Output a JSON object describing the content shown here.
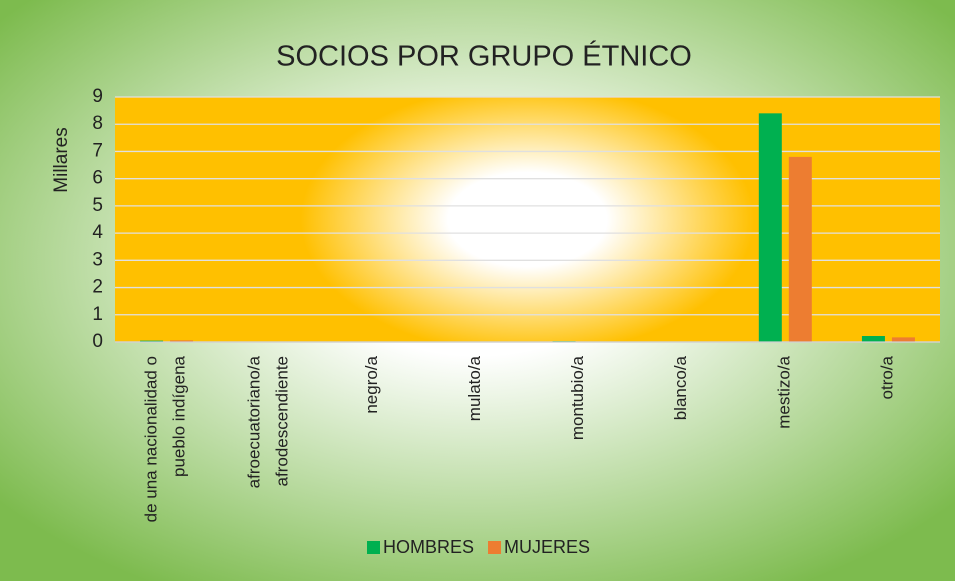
{
  "chart_data": {
    "type": "bar",
    "title": "SOCIOS POR GRUPO ÉTNICO",
    "y_label": "Millares",
    "categories": [
      "de una nacionalidad o pueblo indígena",
      "afroecuatoriano/a afrodescendiente",
      "negro/a",
      "mulato/a",
      "montubio/a",
      "blanco/a",
      "mestizo/a",
      "otro/a"
    ],
    "series": [
      {
        "name": "HOMBRES",
        "color": "#00b050",
        "values": [
          0.05,
          0.01,
          0,
          0,
          0.03,
          0.01,
          8.4,
          0.22
        ]
      },
      {
        "name": "MUJERES",
        "color": "#ed7d31",
        "values": [
          0.06,
          0.01,
          0,
          0,
          0.01,
          0,
          6.8,
          0.17
        ]
      }
    ],
    "ylim": [
      0,
      9
    ],
    "yticks": [
      0,
      1,
      2,
      3,
      4,
      5,
      6,
      7,
      8,
      9
    ],
    "grid": true,
    "legend": "bottom"
  }
}
